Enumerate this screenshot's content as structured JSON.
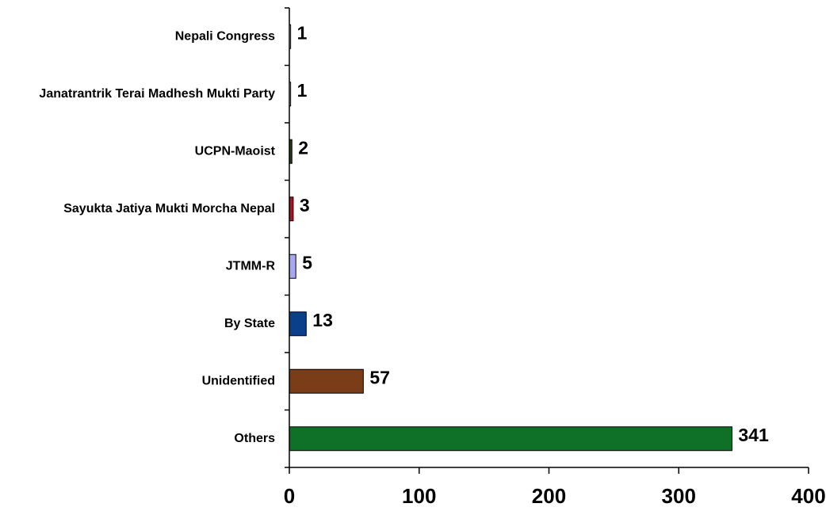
{
  "chart_data": {
    "type": "bar",
    "orientation": "horizontal",
    "categories": [
      "Nepali Congress",
      "Janatrantrik Terai Madhesh Mukti Party",
      "UCPN-Maoist",
      "Sayukta Jatiya Mukti Morcha Nepal",
      "JTMM-R",
      "By State",
      "Unidentified",
      "Others"
    ],
    "values": [
      1,
      1,
      2,
      3,
      5,
      13,
      57,
      341
    ],
    "bar_colors": [
      "#ffffff",
      "#ffffff",
      "#2d3a1e",
      "#a0192b",
      "#a8a8f0",
      "#0a3f8a",
      "#7a3d17",
      "#0f7028"
    ],
    "data_labels": [
      "1",
      "1",
      "2",
      "3",
      "5",
      "13",
      "57",
      "341"
    ],
    "xlim": [
      0,
      400
    ],
    "xticks": [
      0,
      100,
      200,
      300,
      400
    ],
    "xtick_labels": [
      "0",
      "100",
      "200",
      "300",
      "400"
    ],
    "title": "",
    "xlabel": "",
    "ylabel": "",
    "grid": false,
    "legend": "none"
  }
}
